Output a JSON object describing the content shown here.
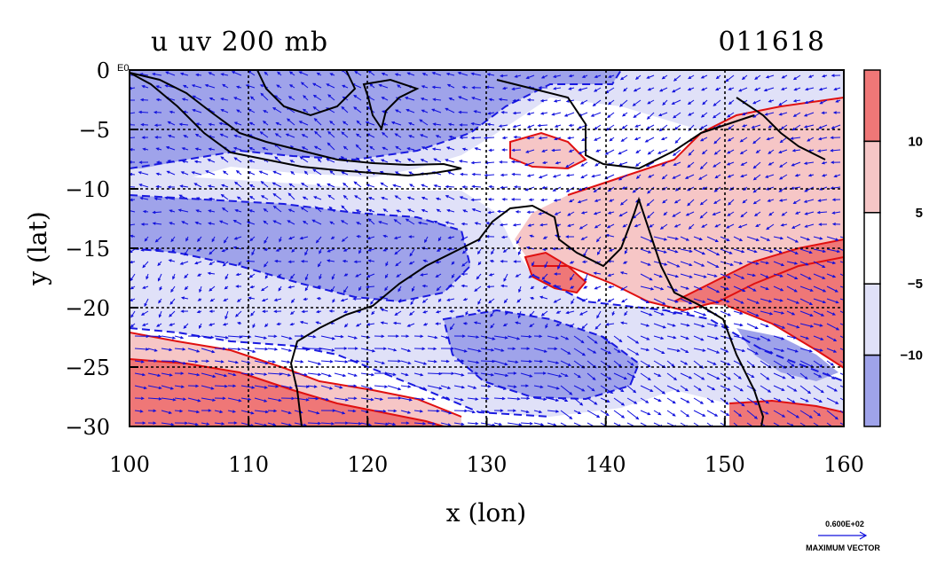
{
  "title_left": "u uv 200 mb",
  "title_right": "011618",
  "corner_label": "E0",
  "chart_data": {
    "type": "heatmap",
    "xlabel": "x (lon)",
    "ylabel": "y (lat)",
    "xlim": [
      100,
      160
    ],
    "ylim": [
      -30,
      0
    ],
    "xticks": [
      "100",
      "110",
      "120",
      "130",
      "140",
      "150",
      "160"
    ],
    "yticks": [
      "0",
      "−5",
      "−10",
      "−15",
      "−20",
      "−25",
      "−30"
    ],
    "grid": true,
    "colorbar": {
      "ticks": [
        "10",
        "5",
        "−5",
        "−10"
      ],
      "levels": [
        {
          "range": [
            10,
            15
          ],
          "color": "#ef7777"
        },
        {
          "range": [
            5,
            10
          ],
          "color": "#f6c6c6"
        },
        {
          "range": [
            -5,
            5
          ],
          "color": "#ffffff"
        },
        {
          "range": [
            -10,
            -5
          ],
          "color": "#e0e1f8"
        },
        {
          "range": [
            -15,
            -10
          ],
          "color": "#9fa3ea"
        }
      ]
    },
    "vector_legend": {
      "value": "0.600E+02",
      "label": "MAXIMUM VECTOR",
      "color": "#1010dd"
    }
  }
}
